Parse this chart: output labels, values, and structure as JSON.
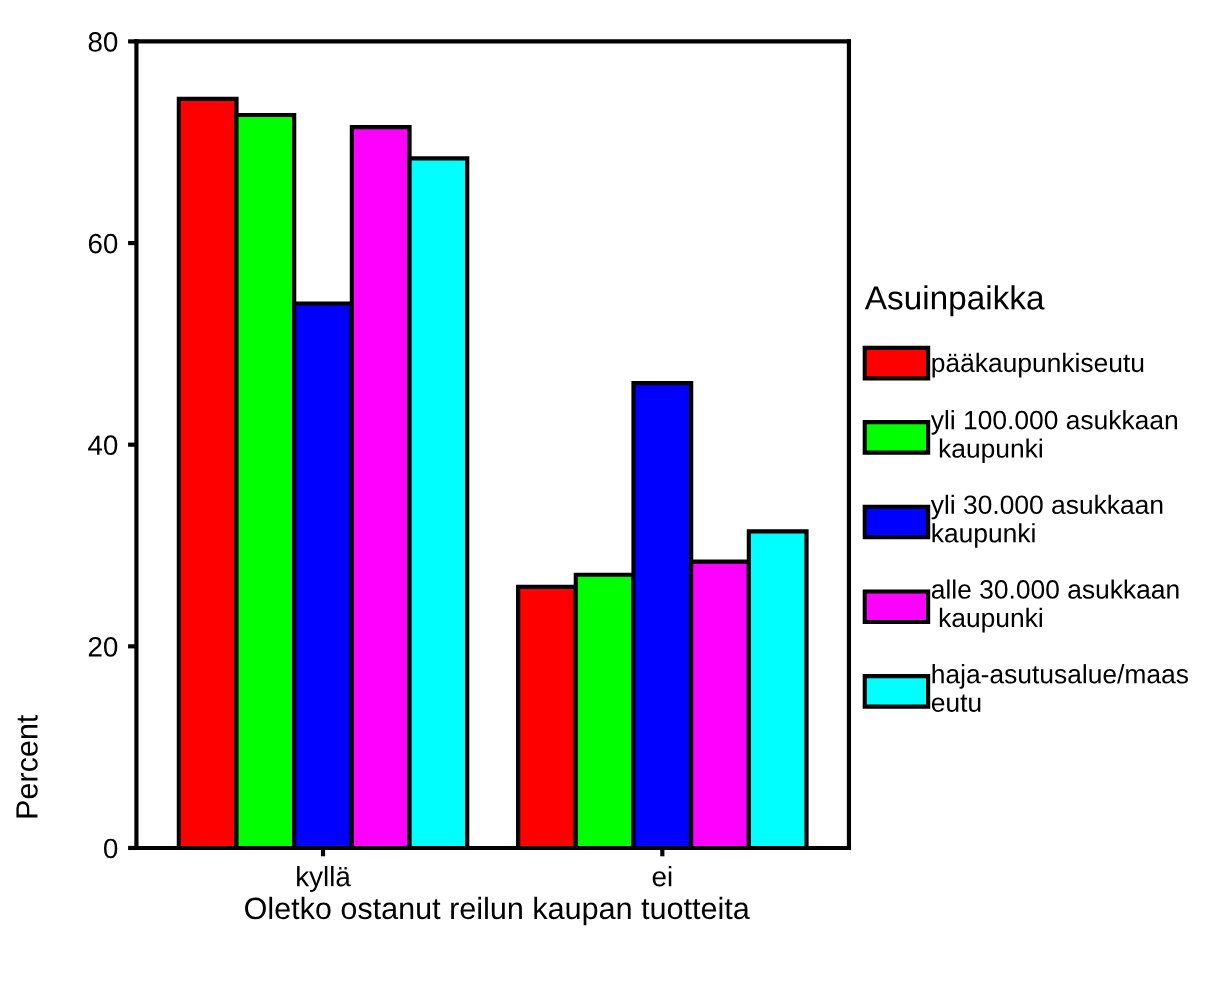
{
  "chart_data": {
    "type": "bar",
    "xlabel": "Oletko ostanut reilun kaupan tuotteita",
    "ylabel": "Percent",
    "legend_title": "Asuinpaikka",
    "categories": [
      "kyllä",
      "ei"
    ],
    "series": [
      {
        "name": "pääkaupunkiseutu",
        "color": "#ff0000",
        "values": [
          74.3,
          25.9
        ]
      },
      {
        "name": "yli 100.000 asukkaan\n kaupunki",
        "color": "#00ff00",
        "values": [
          72.7,
          27.1
        ]
      },
      {
        "name": "yli 30.000 asukkaan\nkaupunki",
        "color": "#0000ff",
        "values": [
          54.0,
          46.1
        ]
      },
      {
        "name": "alle 30.000 asukkaan\n kaupunki",
        "color": "#ff00ff",
        "values": [
          71.5,
          28.4
        ]
      },
      {
        "name": "haja-asutusalue/maas\neutu",
        "color": "#00ffff",
        "values": [
          68.4,
          31.4
        ]
      }
    ],
    "ylim": [
      0,
      80
    ],
    "yticks": [
      0,
      20,
      40,
      60,
      80
    ],
    "grid": false,
    "legend": "right"
  }
}
